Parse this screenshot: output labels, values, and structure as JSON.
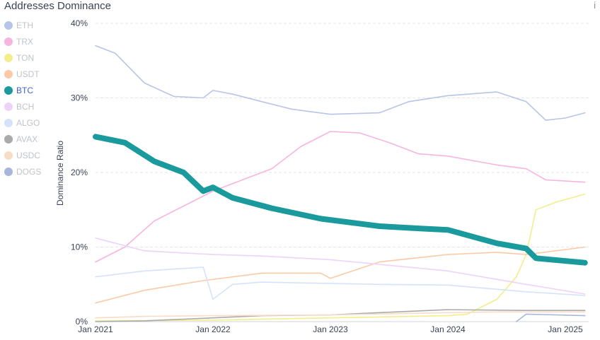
{
  "title": "Addresses Dominance",
  "info_icon": "i",
  "chart_data": {
    "type": "line",
    "title": "Addresses Dominance",
    "ylabel": "Dominance Ratio",
    "xlabel": "",
    "ylim": [
      0,
      40
    ],
    "yticks": [
      "0%",
      "10%",
      "20%",
      "30%",
      "40%"
    ],
    "xticks": [
      {
        "date": "2021-01",
        "label": "Jan 2021"
      },
      {
        "date": "2022-01",
        "label": "Jan 2022"
      },
      {
        "date": "2023-01",
        "label": "Jan 2023"
      },
      {
        "date": "2024-01",
        "label": "Jan 2024"
      },
      {
        "date": "2025-01",
        "label": "Jan 2025"
      }
    ],
    "xlim": [
      "2021-01",
      "2025-03"
    ],
    "grid": "horizontal dashed",
    "legend": "left",
    "highlighted": "BTC",
    "series": [
      {
        "name": "ETH",
        "color": "#b8c4e8",
        "x": [
          "2021-01",
          "2021-03",
          "2021-06",
          "2021-09",
          "2021-12",
          "2022-01",
          "2022-03",
          "2022-06",
          "2022-09",
          "2023-01",
          "2023-06",
          "2023-09",
          "2024-01",
          "2024-06",
          "2024-09",
          "2024-11",
          "2025-01",
          "2025-03"
        ],
        "y": [
          37,
          36,
          32,
          30.2,
          30,
          31,
          30.5,
          29.5,
          28.5,
          27.8,
          28,
          29.5,
          30.3,
          30.8,
          29.5,
          27,
          27.3,
          28
        ]
      },
      {
        "name": "TRX",
        "color": "#f7b5dd",
        "x": [
          "2021-01",
          "2021-04",
          "2021-07",
          "2021-10",
          "2022-01",
          "2022-04",
          "2022-07",
          "2022-10",
          "2023-01",
          "2023-04",
          "2023-07",
          "2023-10",
          "2024-01",
          "2024-06",
          "2024-09",
          "2024-11",
          "2025-03"
        ],
        "y": [
          8,
          10,
          13.5,
          15.5,
          17.5,
          19,
          20.5,
          23.5,
          25.5,
          25.3,
          24,
          22.5,
          22.2,
          21,
          20.5,
          19,
          18.7
        ]
      },
      {
        "name": "TON",
        "color": "#f2ee8c",
        "x": [
          "2021-01",
          "2022-01",
          "2023-01",
          "2024-01",
          "2024-03",
          "2024-06",
          "2024-08",
          "2024-09",
          "2024-10",
          "2024-12",
          "2025-03"
        ],
        "y": [
          0.1,
          0.2,
          0.5,
          0.8,
          1,
          3,
          6,
          9,
          15,
          16,
          17.1
        ]
      },
      {
        "name": "USDT",
        "color": "#fcc9a6",
        "x": [
          "2021-01",
          "2021-06",
          "2021-12",
          "2022-06",
          "2022-12",
          "2023-01",
          "2023-06",
          "2024-01",
          "2024-06",
          "2024-09",
          "2025-03"
        ],
        "y": [
          2.5,
          4.2,
          5.5,
          6.5,
          6.5,
          5.8,
          8,
          9,
          9.3,
          9,
          10
        ]
      },
      {
        "name": "BTC",
        "color": "#1a9a9c",
        "x": [
          "2021-01",
          "2021-04",
          "2021-07",
          "2021-10",
          "2021-12",
          "2022-01",
          "2022-03",
          "2022-07",
          "2022-12",
          "2023-06",
          "2023-10",
          "2024-01",
          "2024-06",
          "2024-09",
          "2024-10",
          "2025-03"
        ],
        "y": [
          24.8,
          24,
          21.5,
          20,
          17.5,
          18,
          16.6,
          15.2,
          13.8,
          12.8,
          12.5,
          12.3,
          10.5,
          9.8,
          8.5,
          7.9
        ]
      },
      {
        "name": "BCH",
        "color": "#ecd4f8",
        "x": [
          "2021-01",
          "2021-06",
          "2022-01",
          "2022-06",
          "2023-01",
          "2024-01",
          "2024-09",
          "2025-03"
        ],
        "y": [
          11.2,
          9.5,
          9,
          8.8,
          8.3,
          6.8,
          5,
          3.7
        ]
      },
      {
        "name": "ALGO",
        "color": "#d5e2fa",
        "x": [
          "2021-01",
          "2021-06",
          "2021-12",
          "2022-01",
          "2022-03",
          "2022-06",
          "2023-06",
          "2024-01",
          "2024-09",
          "2025-03"
        ],
        "y": [
          6,
          6.8,
          7.3,
          3,
          5,
          5.3,
          5,
          4.9,
          4,
          3.5
        ]
      },
      {
        "name": "AVAX",
        "color": "#aaaaaa",
        "x": [
          "2021-01",
          "2021-06",
          "2022-01",
          "2022-06",
          "2023-01",
          "2023-06",
          "2024-01",
          "2024-09",
          "2025-03"
        ],
        "y": [
          0,
          0.1,
          0.5,
          0.8,
          0.9,
          1.2,
          1.6,
          1.5,
          1.5
        ]
      },
      {
        "name": "USDC",
        "color": "#f8dcc8",
        "x": [
          "2021-01",
          "2021-06",
          "2022-01",
          "2023-01",
          "2024-01",
          "2024-06",
          "2025-03"
        ],
        "y": [
          0.5,
          0.7,
          0.8,
          0.9,
          1.2,
          1.3,
          1.3
        ]
      },
      {
        "name": "DOGS",
        "color": "#a9b6db",
        "x": [
          "2024-08",
          "2024-09",
          "2025-03"
        ],
        "y": [
          0,
          1,
          0.8
        ]
      }
    ]
  }
}
